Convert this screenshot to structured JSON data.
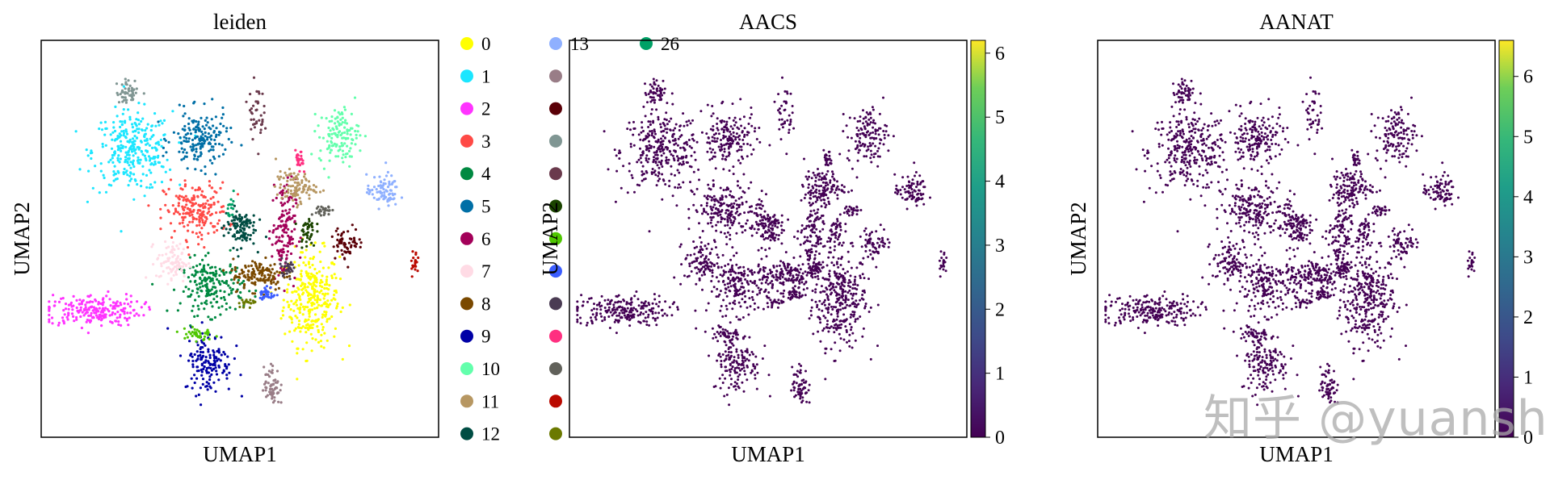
{
  "chart_data": [
    {
      "type": "scatter",
      "title": "leiden",
      "xlabel": "UMAP1",
      "ylabel": "UMAP2",
      "legend_placement": "right",
      "legend": [
        {
          "label": "0",
          "color": "#ffff00"
        },
        {
          "label": "1",
          "color": "#1ce6ff"
        },
        {
          "label": "2",
          "color": "#ff34ff"
        },
        {
          "label": "3",
          "color": "#ff4a46"
        },
        {
          "label": "4",
          "color": "#008941"
        },
        {
          "label": "5",
          "color": "#006fa6"
        },
        {
          "label": "6",
          "color": "#a30059"
        },
        {
          "label": "7",
          "color": "#ffdbe5"
        },
        {
          "label": "8",
          "color": "#7a4900"
        },
        {
          "label": "9",
          "color": "#0000a6"
        },
        {
          "label": "10",
          "color": "#63ffac"
        },
        {
          "label": "11",
          "color": "#b79762"
        },
        {
          "label": "12",
          "color": "#004d43"
        },
        {
          "label": "13",
          "color": "#8fb0ff"
        },
        {
          "label": "",
          "color": "#997d87"
        },
        {
          "label": "",
          "color": "#5a0007"
        },
        {
          "label": "",
          "color": "#809693"
        },
        {
          "label": "",
          "color": "#6a3a4c"
        },
        {
          "label": "",
          "color": "#1b4400"
        },
        {
          "label": "",
          "color": "#4fc601"
        },
        {
          "label": "",
          "color": "#3b5dff"
        },
        {
          "label": "",
          "color": "#4a3b53"
        },
        {
          "label": "",
          "color": "#ff2f80"
        },
        {
          "label": "",
          "color": "#61615a"
        },
        {
          "label": "",
          "color": "#ba0900"
        },
        {
          "label": "",
          "color": "#6b7900"
        },
        {
          "label": "26",
          "color": "#00a166"
        }
      ],
      "clusters": [
        {
          "c": 0,
          "x": 0.68,
          "y": 0.35,
          "rx": 0.07,
          "ry": 0.12,
          "n": 320
        },
        {
          "c": 1,
          "x": 0.23,
          "y": 0.72,
          "rx": 0.1,
          "ry": 0.1,
          "n": 300
        },
        {
          "c": 2,
          "x": 0.13,
          "y": 0.32,
          "rx": 0.12,
          "ry": 0.04,
          "n": 220
        },
        {
          "c": 3,
          "x": 0.39,
          "y": 0.57,
          "rx": 0.08,
          "ry": 0.07,
          "n": 200
        },
        {
          "c": 4,
          "x": 0.43,
          "y": 0.38,
          "rx": 0.08,
          "ry": 0.07,
          "n": 200
        },
        {
          "c": 5,
          "x": 0.4,
          "y": 0.75,
          "rx": 0.07,
          "ry": 0.07,
          "n": 180
        },
        {
          "c": 6,
          "x": 0.61,
          "y": 0.52,
          "rx": 0.03,
          "ry": 0.13,
          "n": 140
        },
        {
          "c": 7,
          "x": 0.33,
          "y": 0.44,
          "rx": 0.04,
          "ry": 0.05,
          "n": 90
        },
        {
          "c": 8,
          "x": 0.55,
          "y": 0.41,
          "rx": 0.07,
          "ry": 0.04,
          "n": 130
        },
        {
          "c": 9,
          "x": 0.42,
          "y": 0.19,
          "rx": 0.06,
          "ry": 0.08,
          "n": 150
        },
        {
          "c": 10,
          "x": 0.75,
          "y": 0.76,
          "rx": 0.05,
          "ry": 0.07,
          "n": 130
        },
        {
          "c": 11,
          "x": 0.64,
          "y": 0.63,
          "rx": 0.05,
          "ry": 0.04,
          "n": 100
        },
        {
          "c": 12,
          "x": 0.5,
          "y": 0.53,
          "rx": 0.04,
          "ry": 0.05,
          "n": 110
        },
        {
          "c": 13,
          "x": 0.86,
          "y": 0.62,
          "rx": 0.04,
          "ry": 0.04,
          "n": 80
        },
        {
          "c": 14,
          "x": 0.58,
          "y": 0.13,
          "rx": 0.02,
          "ry": 0.05,
          "n": 60
        },
        {
          "c": 15,
          "x": 0.77,
          "y": 0.49,
          "rx": 0.04,
          "ry": 0.04,
          "n": 60
        },
        {
          "c": 16,
          "x": 0.22,
          "y": 0.87,
          "rx": 0.03,
          "ry": 0.03,
          "n": 50
        },
        {
          "c": 17,
          "x": 0.54,
          "y": 0.82,
          "rx": 0.02,
          "ry": 0.07,
          "n": 40
        },
        {
          "c": 18,
          "x": 0.67,
          "y": 0.52,
          "rx": 0.02,
          "ry": 0.04,
          "n": 40
        },
        {
          "c": 19,
          "x": 0.39,
          "y": 0.26,
          "rx": 0.04,
          "ry": 0.02,
          "n": 40
        },
        {
          "c": 20,
          "x": 0.57,
          "y": 0.36,
          "rx": 0.02,
          "ry": 0.02,
          "n": 30
        },
        {
          "c": 21,
          "x": 0.62,
          "y": 0.43,
          "rx": 0.02,
          "ry": 0.02,
          "n": 30
        },
        {
          "c": 22,
          "x": 0.65,
          "y": 0.69,
          "rx": 0.01,
          "ry": 0.03,
          "n": 25
        },
        {
          "c": 23,
          "x": 0.71,
          "y": 0.57,
          "rx": 0.02,
          "ry": 0.02,
          "n": 25
        },
        {
          "c": 24,
          "x": 0.94,
          "y": 0.44,
          "rx": 0.01,
          "ry": 0.03,
          "n": 20
        },
        {
          "c": 25,
          "x": 0.52,
          "y": 0.34,
          "rx": 0.03,
          "ry": 0.01,
          "n": 20
        },
        {
          "c": 26,
          "x": 0.48,
          "y": 0.58,
          "rx": 0.01,
          "ry": 0.03,
          "n": 15
        }
      ]
    },
    {
      "type": "scatter",
      "title": "AACS",
      "xlabel": "UMAP1",
      "ylabel": "UMAP2",
      "colorbar": {
        "colormap": "viridis",
        "vmin": 0,
        "vmax": 6.2,
        "ticks": [
          0,
          1,
          2,
          3,
          4,
          5,
          6
        ]
      }
    },
    {
      "type": "scatter",
      "title": "AANAT",
      "xlabel": "UMAP1",
      "ylabel": "UMAP2",
      "colorbar": {
        "colormap": "viridis",
        "vmin": 0,
        "vmax": 6.6,
        "ticks": [
          0,
          1,
          2,
          3,
          4,
          5,
          6
        ]
      }
    }
  ],
  "watermark": "知乎 @yuansh",
  "colors": {
    "base_point": "#440154",
    "frame": "#000000"
  }
}
